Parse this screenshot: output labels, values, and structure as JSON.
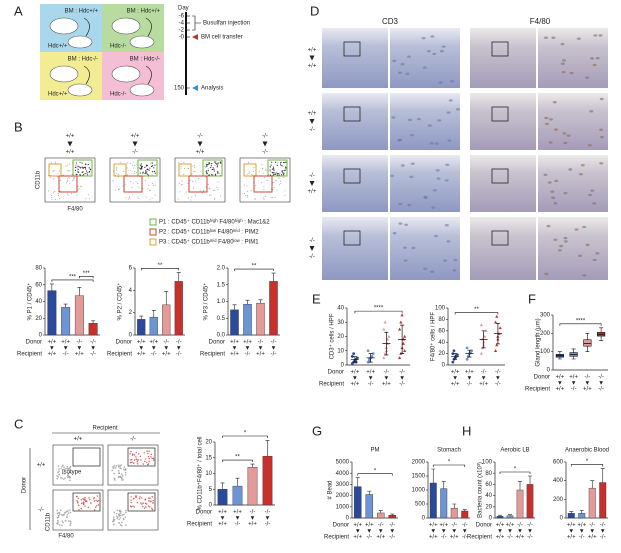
{
  "panel_labels": [
    "A",
    "B",
    "C",
    "D",
    "E",
    "F",
    "G",
    "H"
  ],
  "panel_a": {
    "day_label": "Day",
    "days": [
      "-6",
      "-4",
      "-2",
      "-0",
      "150"
    ],
    "events": [
      "Busulfan injection",
      "BM cell transfer",
      "Analysis"
    ],
    "mice": [
      {
        "bm": "BM : Hdc+/+",
        "host": "Hdc+/+"
      },
      {
        "bm": "BM : Hdc+/+",
        "host": "Hdc-/-"
      },
      {
        "bm": "BM : Hdc-/-",
        "host": "Hdc+/+"
      },
      {
        "bm": "BM : Hdc-/-",
        "host": "Hdc-/-"
      }
    ]
  },
  "panel_b": {
    "groups": [
      {
        "donor": "+/+",
        "recipient": "+/+"
      },
      {
        "donor": "+/+",
        "recipient": "-/-"
      },
      {
        "donor": "-/-",
        "recipient": "+/+"
      },
      {
        "donor": "-/-",
        "recipient": "-/-"
      }
    ],
    "y_axis": "CD11b",
    "x_axis": "F4/80",
    "legend": [
      "P1 : CD45⁺ CD11bʰⁱᵍʰ F4/80ʰⁱᵍʰ : Mac1&2",
      "P2 : CD45⁺ CD11bˡᵒʷ F4/80ᵐⁱᵈ : PIM2",
      "P3 : CD45⁺ CD11bᵐⁱᵈ F4/80ˡᵒʷ : PIM1"
    ]
  },
  "panel_c": {
    "header": "Recipient",
    "cols": [
      "+/+",
      "-/-"
    ],
    "side": "Donor",
    "rows": [
      "+/+",
      "-/-"
    ],
    "isotype": "Isotype",
    "y_axis": "CD11b",
    "x_axis": "F4/80"
  },
  "panel_d": {
    "cols": [
      "CD3",
      "F4/80"
    ],
    "rows": [
      {
        "donor": "+/+",
        "recipient": "+/+"
      },
      {
        "donor": "+/+",
        "recipient": "-/-"
      },
      {
        "donor": "-/-",
        "recipient": "+/+"
      },
      {
        "donor": "-/-",
        "recipient": "-/-"
      }
    ]
  },
  "chart_data": [
    {
      "type": "bar",
      "ylabel": "% P1 / CD45⁺",
      "row_labels": [
        "Donor",
        "Recipient"
      ],
      "donor": [
        "+/+",
        "+/+",
        "-/-",
        "-/-"
      ],
      "recipient": [
        "+/+",
        "-/-",
        "+/+",
        "-/-"
      ],
      "values": [
        53,
        33,
        47,
        14
      ],
      "errors": [
        8,
        4,
        10,
        3
      ],
      "colors": [
        "#2b4a9b",
        "#6d95d6",
        "#e59a9a",
        "#c8302b"
      ],
      "ylim": [
        0,
        80
      ],
      "yticks": [
        0,
        20,
        40,
        60,
        80
      ],
      "significance": [
        {
          "from": 0,
          "to": 3,
          "label": "***"
        },
        {
          "from": 2,
          "to": 3,
          "label": "***"
        }
      ]
    },
    {
      "type": "bar",
      "ylabel": "% P2 / CD45⁺",
      "row_labels": [
        "Donor",
        "Recipient"
      ],
      "donor": [
        "+/+",
        "+/+",
        "-/-",
        "-/-"
      ],
      "recipient": [
        "+/+",
        "-/-",
        "+/+",
        "-/-"
      ],
      "values": [
        1.4,
        1.6,
        2.7,
        4.8
      ],
      "errors": [
        0.3,
        0.6,
        1.2,
        0.8
      ],
      "colors": [
        "#2b4a9b",
        "#6d95d6",
        "#e59a9a",
        "#c8302b"
      ],
      "ylim": [
        0,
        6
      ],
      "yticks": [
        0,
        2,
        4,
        6
      ],
      "significance": [
        {
          "from": 0,
          "to": 3,
          "label": "**"
        }
      ]
    },
    {
      "type": "bar",
      "ylabel": "% P3 / CD45⁺",
      "row_labels": [
        "Donor",
        "Recipient"
      ],
      "donor": [
        "+/+",
        "+/+",
        "-/-",
        "-/-"
      ],
      "recipient": [
        "+/+",
        "-/-",
        "+/+",
        "-/-"
      ],
      "values": [
        0.75,
        0.92,
        0.95,
        1.6
      ],
      "errors": [
        0.15,
        0.12,
        0.1,
        0.25
      ],
      "colors": [
        "#2b4a9b",
        "#6d95d6",
        "#e59a9a",
        "#c8302b"
      ],
      "ylim": [
        0,
        2
      ],
      "yticks": [
        {
          "value": 0,
          "label": "0.0"
        },
        0.5,
        {
          "value": 1,
          "label": "1.0"
        },
        1.5,
        {
          "value": 2,
          "label": "2.0"
        }
      ],
      "significance": [
        {
          "from": 0,
          "to": 3,
          "label": "**"
        }
      ]
    },
    {
      "type": "bar",
      "ylabel": "% CD11b⁺F4/80⁺ / total cell",
      "row_labels": [
        "Donor",
        "Recipient"
      ],
      "donor": [
        "+/+",
        "+/+",
        "-/-",
        "-/-"
      ],
      "recipient": [
        "+/+",
        "-/-",
        "+/+",
        "-/-"
      ],
      "values": [
        5,
        6,
        12,
        15.5
      ],
      "errors": [
        2,
        2.5,
        1,
        5
      ],
      "colors": [
        "#2b4a9b",
        "#6d95d6",
        "#e59a9a",
        "#c8302b"
      ],
      "ylim": [
        0,
        20
      ],
      "yticks": [
        0,
        5,
        10,
        15,
        20
      ],
      "significance": [
        {
          "from": 0,
          "to": 2,
          "label": "**"
        },
        {
          "from": 0,
          "to": 3,
          "label": "*"
        }
      ]
    },
    {
      "type": "dot",
      "ylabel": "CD3⁺ cells / HPF",
      "row_labels": [
        "Donor",
        "Recipient"
      ],
      "donor": [
        "+/+",
        "+/+",
        "-/-",
        "-/-"
      ],
      "recipient": [
        "+/+",
        "-/-",
        "+/+",
        "-/-"
      ],
      "points": [
        [
          1,
          2,
          3,
          4,
          5,
          6,
          8,
          3,
          2
        ],
        [
          2,
          3,
          5,
          6,
          8,
          10,
          4
        ],
        [
          5,
          8,
          10,
          15,
          20,
          25,
          30,
          12,
          18
        ],
        [
          5,
          8,
          12,
          15,
          20,
          25,
          30,
          35,
          18,
          10
        ]
      ],
      "means": [
        4,
        5,
        15,
        18
      ],
      "errors": [
        2,
        3,
        8,
        10
      ],
      "colors": [
        "#2b4a9b",
        "#6d95d6",
        "#e59a9a",
        "#c8302b"
      ],
      "ylim": [
        0,
        40
      ],
      "yticks": [
        0,
        10,
        20,
        30,
        40
      ],
      "significance": [
        {
          "from": 0,
          "to": 3,
          "label": "****"
        }
      ]
    },
    {
      "type": "dot",
      "ylabel": "F4/80⁺ cells / HPF",
      "donor": [
        "+/+",
        "+/+",
        "-/-",
        "-/-"
      ],
      "recipient": [
        "+/+",
        "-/-",
        "+/+",
        "-/-"
      ],
      "points": [
        [
          5,
          10,
          12,
          15,
          18,
          20,
          25
        ],
        [
          10,
          15,
          20,
          22,
          25,
          30
        ],
        [
          20,
          30,
          40,
          50,
          60,
          70,
          45,
          35
        ],
        [
          25,
          35,
          45,
          55,
          65,
          75,
          85,
          50
        ]
      ],
      "means": [
        15,
        20,
        45,
        55
      ],
      "errors": [
        5,
        6,
        15,
        18
      ],
      "colors": [
        "#2b4a9b",
        "#6d95d6",
        "#e59a9a",
        "#c8302b"
      ],
      "ylim": [
        0,
        100
      ],
      "yticks": [
        0,
        20,
        40,
        60,
        80,
        100
      ],
      "significance": [
        {
          "from": 0,
          "to": 3,
          "label": "**"
        }
      ]
    },
    {
      "type": "box",
      "ylabel": "Gland length (μm)",
      "row_labels": [
        "Donor",
        "Recipient"
      ],
      "donor": [
        "+/+",
        "+/+",
        "-/-",
        "-/-"
      ],
      "recipient": [
        "+/+",
        "-/-",
        "+/+",
        "-/-"
      ],
      "boxes": [
        [
          60,
          70,
          80,
          85,
          100
        ],
        [
          60,
          75,
          85,
          95,
          115
        ],
        [
          100,
          130,
          145,
          165,
          200
        ],
        [
          160,
          185,
          195,
          205,
          230
        ]
      ],
      "colors": [
        "#2b4a9b",
        "#6d95d6",
        "#e59a9a",
        "#c8302b"
      ],
      "ylim": [
        0,
        300
      ],
      "yticks": [
        0,
        100,
        200,
        300
      ],
      "significance": [
        {
          "from": 0,
          "to": 3,
          "label": "****"
        }
      ]
    },
    {
      "type": "bar",
      "title": "PM",
      "ylabel": "# Bead",
      "row_labels": [
        "Donor",
        "Recipient"
      ],
      "donor": [
        "+/+",
        "+/+",
        "-/-",
        "-/-"
      ],
      "recipient": [
        "+/+",
        "-/-",
        "+/+",
        "-/-"
      ],
      "values": [
        2800,
        2100,
        450,
        250
      ],
      "errors": [
        800,
        300,
        200,
        100
      ],
      "colors": [
        "#2b4a9b",
        "#6d95d6",
        "#e59a9a",
        "#c8302b"
      ],
      "ylim": [
        0,
        5000
      ],
      "yticks": [
        0,
        1000,
        2000,
        3000,
        4000,
        5000
      ],
      "significance": [
        {
          "from": 0,
          "to": 3,
          "label": "*"
        }
      ]
    },
    {
      "type": "bar",
      "title": "Stomach",
      "donor": [
        "+/+",
        "+/+",
        "-/-",
        "-/-"
      ],
      "recipient": [
        "+/+",
        "-/-",
        "+/+",
        "-/-"
      ],
      "values": [
        1250,
        1050,
        350,
        250
      ],
      "errors": [
        500,
        250,
        150,
        50
      ],
      "colors": [
        "#2b4a9b",
        "#6d95d6",
        "#e59a9a",
        "#c8302b"
      ],
      "ylim": [
        0,
        2000
      ],
      "yticks": [
        0,
        500,
        1000,
        1500,
        2000
      ],
      "significance": [
        {
          "from": 0,
          "to": 3,
          "label": "*"
        }
      ]
    },
    {
      "type": "bar",
      "title": "Aerobic LB",
      "ylabel": "Bacteria count (x10³)",
      "row_labels": [
        "Donor",
        "Recipient"
      ],
      "donor": [
        "+/+",
        "+/+",
        "-/-",
        "-/-"
      ],
      "recipient": [
        "+/+",
        "-/-",
        "+/+",
        "-/-"
      ],
      "values": [
        3,
        4,
        50,
        60
      ],
      "errors": [
        2,
        2,
        15,
        15
      ],
      "colors": [
        "#2b4a9b",
        "#6d95d6",
        "#e59a9a",
        "#c8302b"
      ],
      "ylim": [
        0,
        100
      ],
      "yticks": [
        0,
        20,
        40,
        60,
        80,
        100
      ],
      "significance": [
        {
          "from": 0,
          "to": 3,
          "label": "*"
        }
      ]
    },
    {
      "type": "bar",
      "title": "Anaerobic Blood",
      "donor": [
        "+/+",
        "+/+",
        "-/-",
        "-/-"
      ],
      "recipient": [
        "+/+",
        "-/-",
        "+/+",
        "-/-"
      ],
      "values": [
        50,
        50,
        320,
        380
      ],
      "errors": [
        20,
        30,
        80,
        150
      ],
      "colors": [
        "#2b4a9b",
        "#6d95d6",
        "#e59a9a",
        "#c8302b"
      ],
      "ylim": [
        0,
        600
      ],
      "yticks": [
        0,
        200,
        400,
        600
      ],
      "significance": [
        {
          "from": 0,
          "to": 3,
          "label": "*"
        }
      ]
    }
  ]
}
